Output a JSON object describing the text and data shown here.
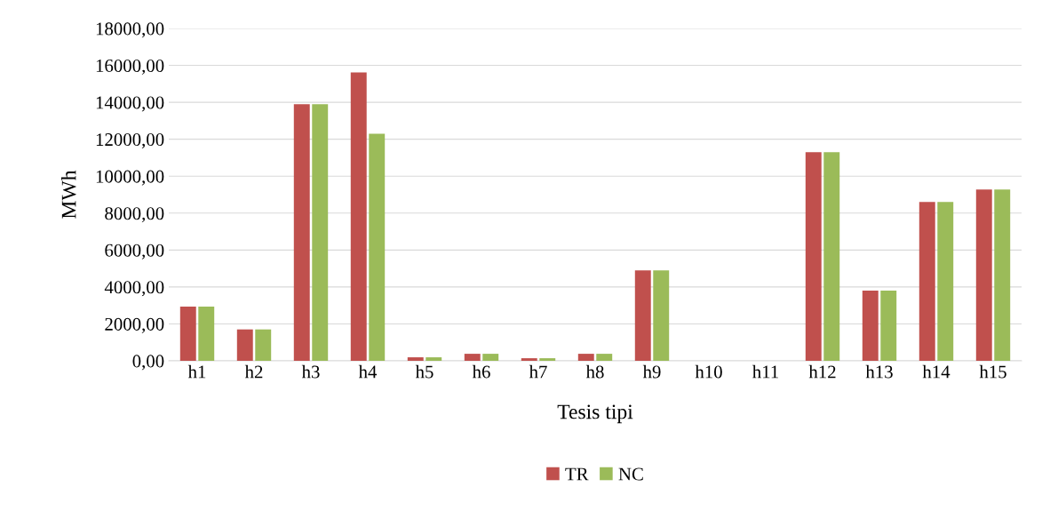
{
  "chart_data": {
    "type": "bar",
    "xlabel": "Tesis tipi",
    "ylabel": "MWh",
    "categories": [
      "h1",
      "h2",
      "h3",
      "h4",
      "h5",
      "h6",
      "h7",
      "h8",
      "h9",
      "h10",
      "h11",
      "h12",
      "h13",
      "h14",
      "h15"
    ],
    "series": [
      {
        "name": "TR",
        "color": "#c0504d",
        "values": [
          2930,
          1700,
          13900,
          15620,
          190,
          380,
          140,
          380,
          4900,
          0,
          0,
          11300,
          3800,
          8600,
          9280
        ]
      },
      {
        "name": "NC",
        "color": "#9bbb59",
        "values": [
          2930,
          1700,
          13900,
          12300,
          190,
          380,
          140,
          380,
          4900,
          0,
          0,
          11300,
          3800,
          8600,
          9280
        ]
      }
    ],
    "ylim": [
      0,
      18000
    ],
    "yticks": [
      {
        "value": 0,
        "label": "0,00"
      },
      {
        "value": 2000,
        "label": "2000,00"
      },
      {
        "value": 4000,
        "label": "4000,00"
      },
      {
        "value": 6000,
        "label": "6000,00"
      },
      {
        "value": 8000,
        "label": "8000,00"
      },
      {
        "value": 10000,
        "label": "10000,00"
      },
      {
        "value": 12000,
        "label": "12000,00"
      },
      {
        "value": 14000,
        "label": "14000,00"
      },
      {
        "value": 16000,
        "label": "16000,00"
      },
      {
        "value": 18000,
        "label": "18000,00"
      }
    ],
    "grid": "y",
    "legend": "bottom"
  }
}
